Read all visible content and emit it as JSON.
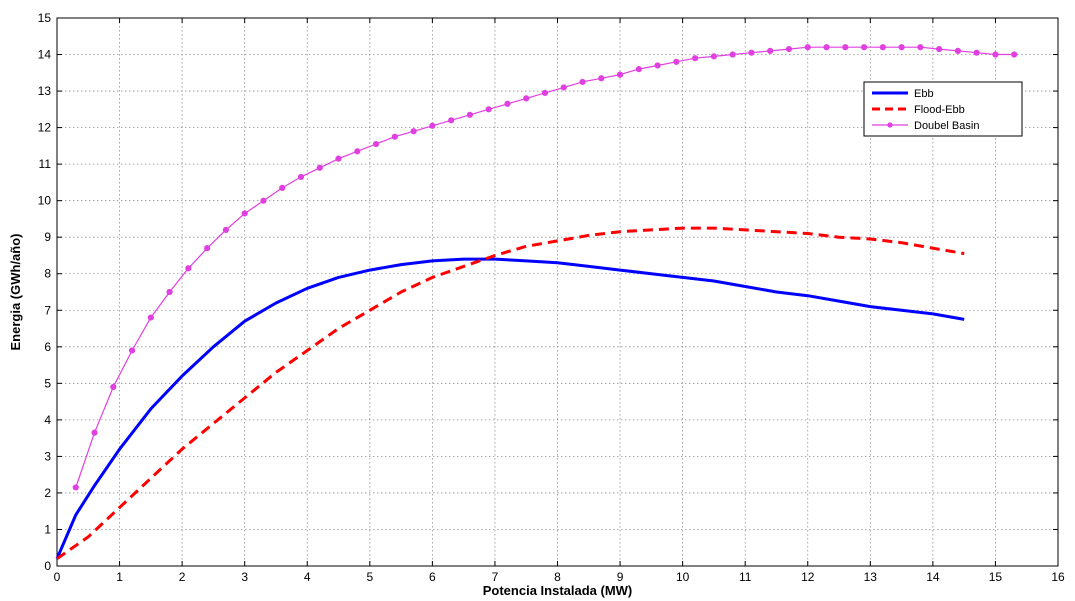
{
  "chart_data": {
    "type": "line",
    "title": "",
    "xlabel": "Potencia Instalada (MW)",
    "ylabel": "Energia (GWh/año)",
    "xlim": [
      0,
      16
    ],
    "ylim": [
      0,
      15
    ],
    "xticks": [
      0,
      1,
      2,
      3,
      4,
      5,
      6,
      7,
      8,
      9,
      10,
      11,
      12,
      13,
      14,
      15,
      16
    ],
    "yticks": [
      0,
      1,
      2,
      3,
      4,
      5,
      6,
      7,
      8,
      9,
      10,
      11,
      12,
      13,
      14,
      15
    ],
    "grid": true,
    "legend_position": "top-right",
    "series": [
      {
        "name": "Ebb",
        "color": "#0000ff",
        "line_style": "solid",
        "marker": "none",
        "x": [
          0,
          0.3,
          0.6,
          1,
          1.5,
          2,
          2.5,
          3,
          3.5,
          4,
          4.5,
          5,
          5.5,
          6,
          6.5,
          7,
          7.5,
          8,
          8.5,
          9,
          9.5,
          10,
          10.5,
          11,
          11.5,
          12,
          12.5,
          13,
          13.5,
          14,
          14.5
        ],
        "y": [
          0.2,
          1.4,
          2.2,
          3.2,
          4.3,
          5.2,
          6.0,
          6.7,
          7.2,
          7.6,
          7.9,
          8.1,
          8.25,
          8.35,
          8.4,
          8.4,
          8.35,
          8.3,
          8.2,
          8.1,
          8.0,
          7.9,
          7.8,
          7.65,
          7.5,
          7.4,
          7.25,
          7.1,
          7.0,
          6.9,
          6.75
        ]
      },
      {
        "name": "Flood-Ebb",
        "color": "#ff0000",
        "line_style": "dashed",
        "marker": "none",
        "x": [
          0,
          0.5,
          1,
          1.5,
          2,
          2.5,
          3,
          3.5,
          4,
          4.5,
          5,
          5.5,
          6,
          6.5,
          7,
          7.5,
          8,
          8.5,
          9,
          9.5,
          10,
          10.5,
          11,
          11.5,
          12,
          12.5,
          13,
          13.5,
          14,
          14.5
        ],
        "y": [
          0.2,
          0.8,
          1.6,
          2.4,
          3.2,
          3.9,
          4.6,
          5.3,
          5.9,
          6.5,
          7.0,
          7.5,
          7.9,
          8.2,
          8.5,
          8.75,
          8.9,
          9.05,
          9.15,
          9.2,
          9.25,
          9.25,
          9.2,
          9.15,
          9.1,
          9.0,
          8.95,
          8.85,
          8.7,
          8.55
        ]
      },
      {
        "name": "Doubel Basin",
        "color": "#e040e0",
        "line_style": "solid",
        "marker": "dot",
        "x": [
          0.3,
          0.6,
          0.9,
          1.2,
          1.5,
          1.8,
          2.1,
          2.4,
          2.7,
          3.0,
          3.3,
          3.6,
          3.9,
          4.2,
          4.5,
          4.8,
          5.1,
          5.4,
          5.7,
          6.0,
          6.3,
          6.6,
          6.9,
          7.2,
          7.5,
          7.8,
          8.1,
          8.4,
          8.7,
          9.0,
          9.3,
          9.6,
          9.9,
          10.2,
          10.5,
          10.8,
          11.1,
          11.4,
          11.7,
          12.0,
          12.3,
          12.6,
          12.9,
          13.2,
          13.5,
          13.8,
          14.1,
          14.4,
          14.7,
          15.0,
          15.3
        ],
        "y": [
          2.15,
          3.65,
          4.9,
          5.9,
          6.8,
          7.5,
          8.15,
          8.7,
          9.2,
          9.65,
          10.0,
          10.35,
          10.65,
          10.9,
          11.15,
          11.35,
          11.55,
          11.75,
          11.9,
          12.05,
          12.2,
          12.35,
          12.5,
          12.65,
          12.8,
          12.95,
          13.1,
          13.25,
          13.35,
          13.45,
          13.6,
          13.7,
          13.8,
          13.9,
          13.95,
          14.0,
          14.05,
          14.1,
          14.15,
          14.2,
          14.2,
          14.2,
          14.2,
          14.2,
          14.2,
          14.2,
          14.15,
          14.1,
          14.05,
          14.0,
          14.0
        ]
      }
    ]
  }
}
